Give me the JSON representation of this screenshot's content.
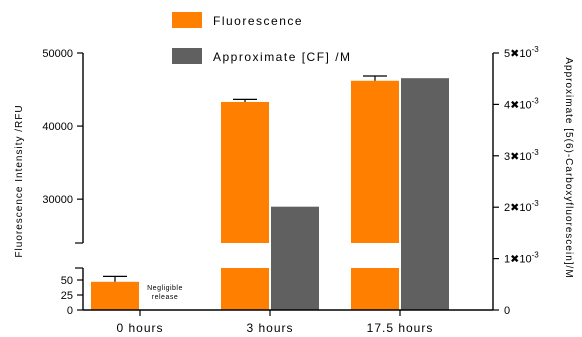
{
  "chart_data": {
    "type": "bar",
    "categories": [
      "0 hours",
      "3 hours",
      "17.5 hours"
    ],
    "series": [
      {
        "name": "Fluorescence",
        "axis": "left",
        "color": "#ff8000",
        "values": [
          47,
          43300,
          46200
        ],
        "errors": [
          9,
          350,
          650
        ]
      },
      {
        "name": "Approximate [CF] /M",
        "axis": "right",
        "color": "#606060",
        "values": [
          0,
          0.00201,
          0.00451
        ]
      }
    ],
    "ylabel": "Fluorescence Intensity /RFU",
    "y2label": "Approximate [5(6)-Carboxyfluorescein]/M",
    "y_lower_range": [
      0,
      70
    ],
    "y_upper_range": [
      24000,
      50000
    ],
    "y_lower_ticks": [
      "0",
      "25",
      "50"
    ],
    "y_upper_ticks": [
      "30000",
      "40000",
      "50000"
    ],
    "y2lim": [
      0,
      0.005
    ],
    "y2_ticks": [
      {
        "value": 0,
        "mantissa": "0",
        "exp": ""
      },
      {
        "value": 0.001,
        "mantissa": "1",
        "exp": "-3"
      },
      {
        "value": 0.002,
        "mantissa": "2",
        "exp": "-3"
      },
      {
        "value": 0.003,
        "mantissa": "3",
        "exp": "-3"
      },
      {
        "value": 0.004,
        "mantissa": "4",
        "exp": "-3"
      },
      {
        "value": 0.005,
        "mantissa": "5",
        "exp": "-3"
      }
    ],
    "annotation": {
      "line1": "Negligible",
      "line2": "release"
    },
    "legend": "top-center"
  }
}
